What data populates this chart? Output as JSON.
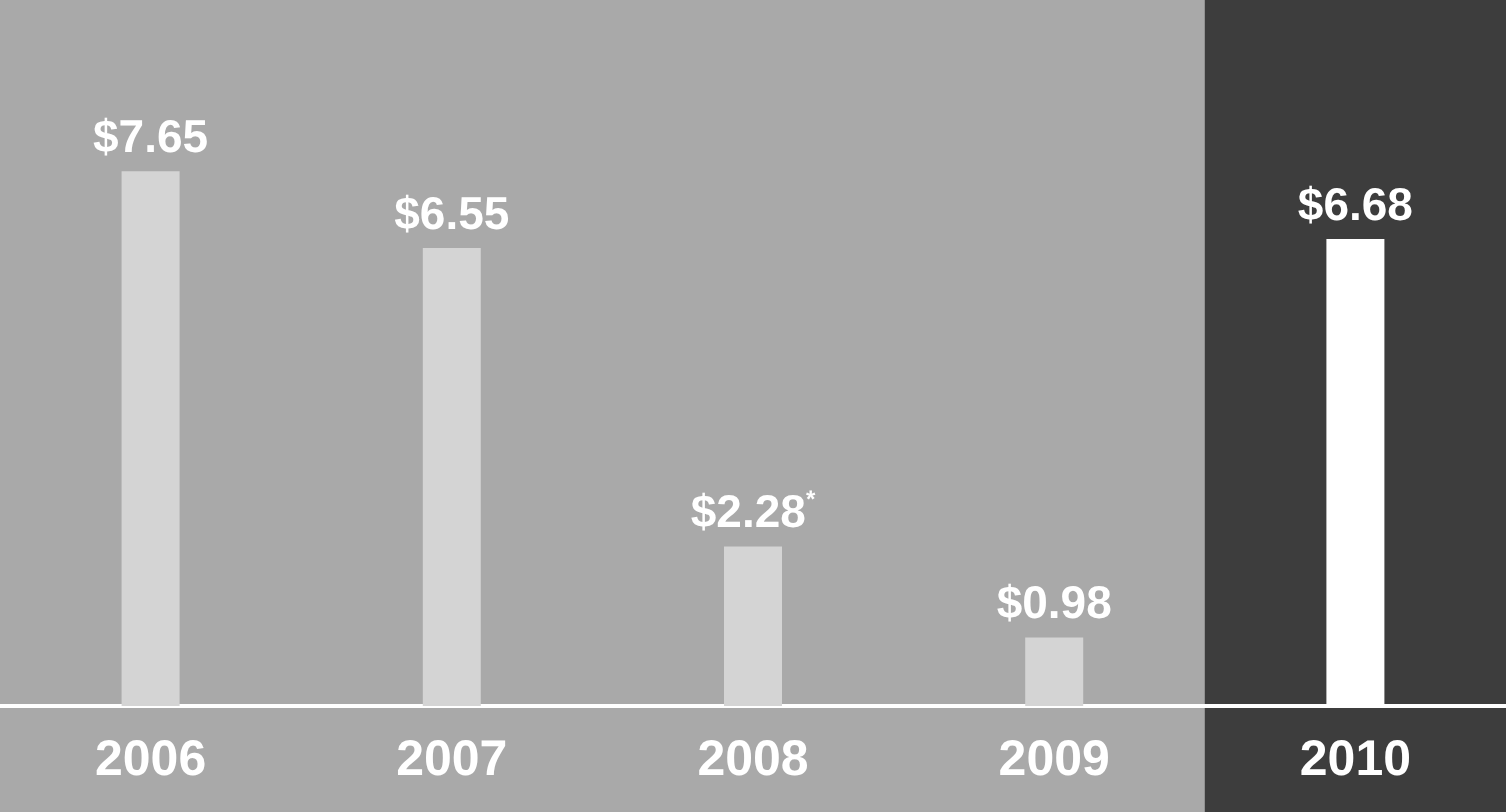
{
  "chart_data": {
    "type": "bar",
    "categories": [
      "2006",
      "2007",
      "2008",
      "2009",
      "2010"
    ],
    "values": [
      7.65,
      6.55,
      2.28,
      0.98,
      6.68
    ],
    "colors": [
      "#d4d4d4",
      "#d4d4d4",
      "#d4d4d4",
      "#d4d4d4",
      "#ffffff"
    ],
    "value_labels": [
      "$7.65",
      "$6.55",
      "$2.28$^{*}$",
      "$0.98",
      "$6.68"
    ],
    "bands": [
      {
        "axis": "x",
        "from": "2010",
        "to": "2010",
        "color": "#3d3d3d"
      }
    ]
  }
}
